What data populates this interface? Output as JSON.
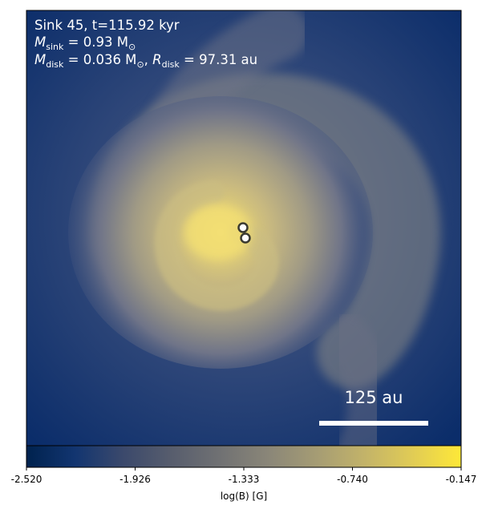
{
  "panel": {
    "line1": "Sink 45, t=115.92 kyr",
    "line2_prefix": "M",
    "line2_sub": "sink",
    "line2_rest": " = 0.93 M",
    "line2_unit_sub": "⊙",
    "line3_prefix": "M",
    "line3_sub": "disk",
    "line3_rest": " = 0.036 M",
    "line3_unit_sub": "⊙",
    "line3_sep": ", ",
    "line3_prefix2": "R",
    "line3_sub2": "disk",
    "line3_rest2": " = 97.31 au"
  },
  "scalebar": {
    "label": "125 au"
  },
  "colorbar": {
    "label": "log(B) [G]",
    "ticks": [
      "-2.520",
      "-1.926",
      "-1.333",
      "-0.740",
      "-0.147"
    ],
    "min": -2.52,
    "max": -0.147,
    "colormap": "cividis",
    "stops": [
      "#00224e",
      "#123570",
      "#3b496c",
      "#575d6d",
      "#707173",
      "#8a8678",
      "#a59c74",
      "#c3b369",
      "#e1cc55",
      "#fee838"
    ]
  },
  "chart_data": {
    "type": "heatmap",
    "quantity": "log(B) [G]",
    "range": [
      -2.52,
      -0.147
    ],
    "sinks": 2,
    "colors": {
      "background": "#0a2c68",
      "core": "#f0dd70",
      "sink_fill": "#ffffff",
      "sink_edge": "#3a3a30"
    }
  }
}
